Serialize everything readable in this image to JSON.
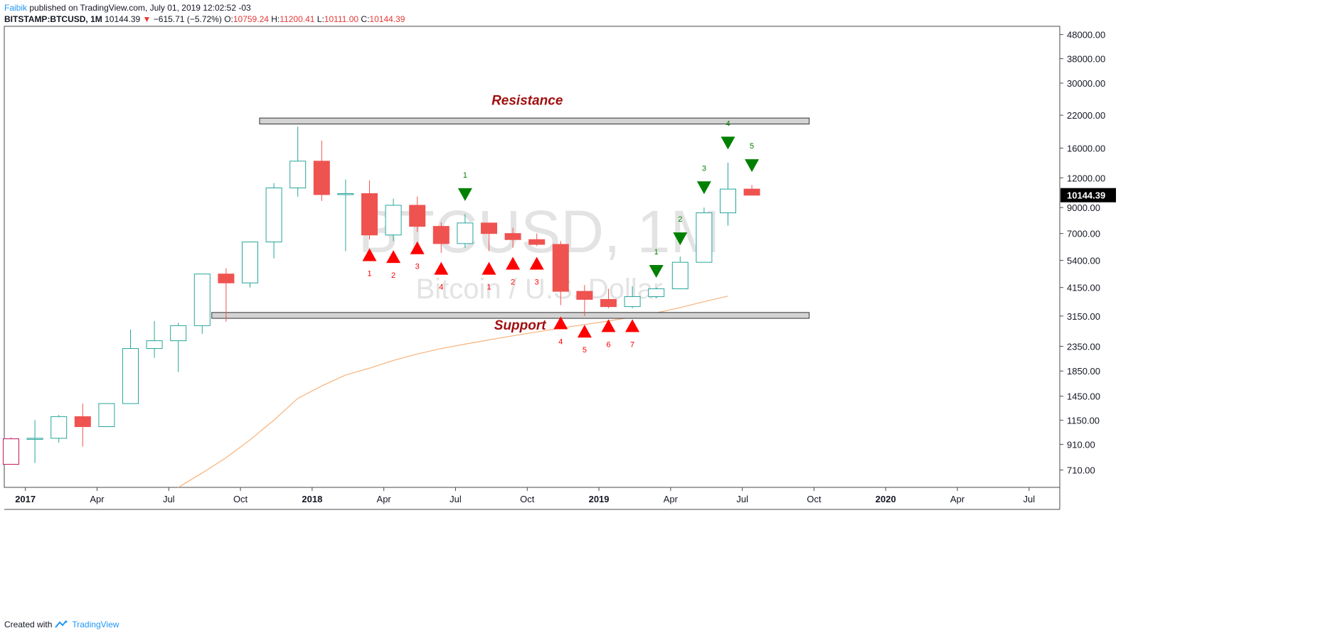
{
  "header": {
    "author": "Faibik",
    "published": "published on TradingView.com, July 01, 2019 12:02:52 -03",
    "symbol": "BITSTAMP:BTCUSD, 1M",
    "last": "10144.39",
    "change": "−615.71 (−5.72%)",
    "o_label": "O:",
    "o_value": "10759.24",
    "h_label": "H:",
    "h_value": "11200.41",
    "l_label": "L:",
    "l_value": "10111.00",
    "c_label": "C:",
    "c_value": "10144.39"
  },
  "footer": {
    "created_with": "Created with",
    "brand": "TradingView"
  },
  "colors": {
    "up": "#26a69a",
    "down": "#ef5350",
    "ma": "#f7b27a",
    "zone_fill": "#d3d3d3",
    "zone_stroke": "#333333",
    "sell_arrow": "#008000",
    "buy_arrow": "#ff0000",
    "label_dark_red": "#a01010",
    "watermark": "#e3e3e3"
  },
  "chart_data": {
    "type": "candlestick",
    "title": "BTCUSD, 1M",
    "watermark": "BTCUSD, 1M",
    "watermark_sub": "Bitcoin / U.S. Dollar",
    "yscale": "log",
    "ylim": [
      600,
      52000
    ],
    "y_ticks": [
      "48000.00",
      "38000.00",
      "30000.00",
      "22000.00",
      "16000.00",
      "12000.00",
      "9000.00",
      "7000.00",
      "5400.00",
      "4150.00",
      "3150.00",
      "2350.00",
      "1850.00",
      "1450.00",
      "1150.00",
      "910.00",
      "710.00"
    ],
    "last_price_label": "10144.39",
    "x_ticks": [
      {
        "label": "2017",
        "i": 0.6,
        "bold": true
      },
      {
        "label": "Apr",
        "i": 3.6
      },
      {
        "label": "Jul",
        "i": 6.6
      },
      {
        "label": "Oct",
        "i": 9.6
      },
      {
        "label": "2018",
        "i": 12.6,
        "bold": true
      },
      {
        "label": "Apr",
        "i": 15.6
      },
      {
        "label": "Jul",
        "i": 18.6
      },
      {
        "label": "Oct",
        "i": 21.6
      },
      {
        "label": "2019",
        "i": 24.6,
        "bold": true
      },
      {
        "label": "Apr",
        "i": 27.6
      },
      {
        "label": "Jul",
        "i": 30.6
      },
      {
        "label": "Oct",
        "i": 33.6
      },
      {
        "label": "2020",
        "i": 36.6,
        "bold": true
      },
      {
        "label": "Apr",
        "i": 39.6
      },
      {
        "label": "Jul",
        "i": 42.6
      }
    ],
    "candles": [
      {
        "t": "2016-12",
        "o": 750,
        "h": 970,
        "l": 750,
        "c": 960,
        "dir": "up_pink"
      },
      {
        "t": "2017-01",
        "o": 955,
        "h": 1150,
        "l": 760,
        "c": 965
      },
      {
        "t": "2017-02",
        "o": 965,
        "h": 1210,
        "l": 925,
        "c": 1190
      },
      {
        "t": "2017-03",
        "o": 1190,
        "h": 1350,
        "l": 890,
        "c": 1080
      },
      {
        "t": "2017-04",
        "o": 1080,
        "h": 1350,
        "l": 1080,
        "c": 1350
      },
      {
        "t": "2017-05",
        "o": 1350,
        "h": 2760,
        "l": 1350,
        "c": 2300
      },
      {
        "t": "2017-06",
        "o": 2300,
        "h": 3000,
        "l": 2100,
        "c": 2480
      },
      {
        "t": "2017-07",
        "o": 2480,
        "h": 2950,
        "l": 1830,
        "c": 2870
      },
      {
        "t": "2017-08",
        "o": 2870,
        "h": 4740,
        "l": 2650,
        "c": 4730
      },
      {
        "t": "2017-09",
        "o": 4730,
        "h": 5000,
        "l": 2980,
        "c": 4340
      },
      {
        "t": "2017-10",
        "o": 4340,
        "h": 6470,
        "l": 4150,
        "c": 6450
      },
      {
        "t": "2017-11",
        "o": 6450,
        "h": 11400,
        "l": 5500,
        "c": 10880
      },
      {
        "t": "2017-12",
        "o": 10880,
        "h": 19700,
        "l": 10000,
        "c": 14100
      },
      {
        "t": "2018-01",
        "o": 14100,
        "h": 17200,
        "l": 9600,
        "c": 10200
      },
      {
        "t": "2018-02",
        "o": 10200,
        "h": 11800,
        "l": 5900,
        "c": 10300
      },
      {
        "t": "2018-03",
        "o": 10300,
        "h": 11700,
        "l": 6600,
        "c": 6900
      },
      {
        "t": "2018-04",
        "o": 6900,
        "h": 9800,
        "l": 6500,
        "c": 9200
      },
      {
        "t": "2018-05",
        "o": 9200,
        "h": 10000,
        "l": 7100,
        "c": 7500
      },
      {
        "t": "2018-06",
        "o": 7500,
        "h": 7800,
        "l": 5800,
        "c": 6350
      },
      {
        "t": "2018-07",
        "o": 6350,
        "h": 8450,
        "l": 6100,
        "c": 7750
      },
      {
        "t": "2018-08",
        "o": 7750,
        "h": 7760,
        "l": 5900,
        "c": 7000
      },
      {
        "t": "2018-09",
        "o": 7000,
        "h": 7400,
        "l": 6100,
        "c": 6600
      },
      {
        "t": "2018-10",
        "o": 6600,
        "h": 7000,
        "l": 6200,
        "c": 6300
      },
      {
        "t": "2018-11",
        "o": 6300,
        "h": 6500,
        "l": 3500,
        "c": 4000
      },
      {
        "t": "2018-12",
        "o": 4000,
        "h": 4250,
        "l": 3150,
        "c": 3700
      },
      {
        "t": "2019-01",
        "o": 3700,
        "h": 4100,
        "l": 3400,
        "c": 3450
      },
      {
        "t": "2019-02",
        "o": 3450,
        "h": 4200,
        "l": 3400,
        "c": 3800
      },
      {
        "t": "2019-03",
        "o": 3800,
        "h": 4150,
        "l": 3750,
        "c": 4100
      },
      {
        "t": "2019-04",
        "o": 4100,
        "h": 5600,
        "l": 4100,
        "c": 5300
      },
      {
        "t": "2019-05",
        "o": 5300,
        "h": 9000,
        "l": 5300,
        "c": 8550
      },
      {
        "t": "2019-06",
        "o": 8550,
        "h": 13900,
        "l": 7550,
        "c": 10760
      },
      {
        "t": "2019-07",
        "o": 10760,
        "h": 11200,
        "l": 10111,
        "c": 10144
      }
    ],
    "moving_average": [
      {
        "i": 7,
        "v": 600
      },
      {
        "i": 8,
        "v": 690
      },
      {
        "i": 9,
        "v": 800
      },
      {
        "i": 10,
        "v": 950
      },
      {
        "i": 11,
        "v": 1150
      },
      {
        "i": 12,
        "v": 1420
      },
      {
        "i": 13,
        "v": 1600
      },
      {
        "i": 14,
        "v": 1780
      },
      {
        "i": 15,
        "v": 1900
      },
      {
        "i": 16,
        "v": 2050
      },
      {
        "i": 17,
        "v": 2180
      },
      {
        "i": 18,
        "v": 2300
      },
      {
        "i": 19,
        "v": 2400
      },
      {
        "i": 20,
        "v": 2500
      },
      {
        "i": 21,
        "v": 2600
      },
      {
        "i": 22,
        "v": 2700
      },
      {
        "i": 23,
        "v": 2800
      },
      {
        "i": 24,
        "v": 2900
      },
      {
        "i": 25,
        "v": 3000
      },
      {
        "i": 26,
        "v": 3120
      },
      {
        "i": 27,
        "v": 3250
      },
      {
        "i": 28,
        "v": 3420
      },
      {
        "i": 29,
        "v": 3620
      },
      {
        "i": 30,
        "v": 3820
      }
    ],
    "zones": [
      {
        "name": "Resistance",
        "i_start": 10.4,
        "i_end": 33.4,
        "low": 20200,
        "high": 21400,
        "label_i": 21.6,
        "label_price": 24300,
        "label_pos": "above"
      },
      {
        "name": "Support",
        "i_start": 8.4,
        "i_end": 33.4,
        "low": 3080,
        "high": 3260,
        "label_i": 21.3,
        "label_price": 2760,
        "label_pos": "below"
      }
    ],
    "buy_signals": [
      {
        "i": 15,
        "label": "1",
        "price": 5700
      },
      {
        "i": 16,
        "label": "2",
        "price": 5600
      },
      {
        "i": 17,
        "label": "3",
        "price": 6100
      },
      {
        "i": 18,
        "label": "4",
        "price": 5000
      },
      {
        "i": 20,
        "label": "1",
        "price": 5000
      },
      {
        "i": 21,
        "label": "2",
        "price": 5250
      },
      {
        "i": 22,
        "label": "3",
        "price": 5250
      },
      {
        "i": 23,
        "label": "4",
        "price": 2950
      },
      {
        "i": 24,
        "label": "5",
        "price": 2720
      },
      {
        "i": 25,
        "label": "6",
        "price": 2870
      },
      {
        "i": 26,
        "label": "7",
        "price": 2870
      }
    ],
    "sell_signals": [
      {
        "i": 19,
        "label": "1",
        "price": 10200
      },
      {
        "i": 27,
        "label": "1",
        "price": 4850
      },
      {
        "i": 28,
        "label": "2",
        "price": 6650
      },
      {
        "i": 29,
        "label": "3",
        "price": 10900
      },
      {
        "i": 30,
        "label": "4",
        "price": 16800
      },
      {
        "i": 31,
        "label": "5",
        "price": 13500
      }
    ]
  }
}
